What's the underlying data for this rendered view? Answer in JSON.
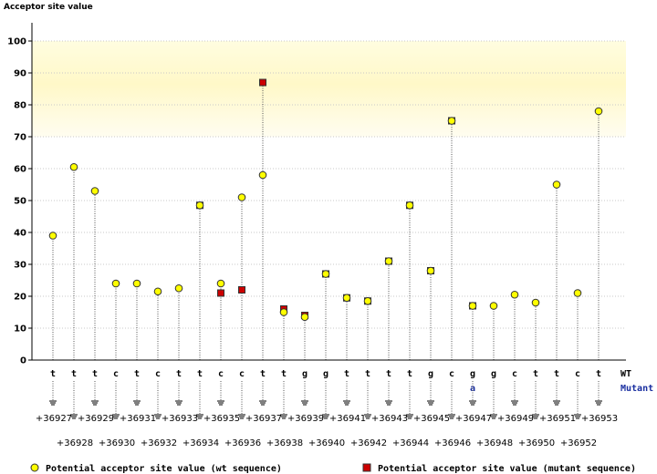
{
  "chart_data": {
    "type": "scatter",
    "ylabel": "Acceptor site value",
    "ylim": [
      0,
      100
    ],
    "yticks": [
      0,
      10,
      20,
      30,
      40,
      50,
      60,
      70,
      80,
      90,
      100
    ],
    "highlight_band": [
      70,
      100
    ],
    "positions": [
      "+36927",
      "+36928",
      "+36929",
      "+36930",
      "+36931",
      "+36932",
      "+36933",
      "+36934",
      "+36935",
      "+36936",
      "+36937",
      "+36938",
      "+36939",
      "+36940",
      "+36941",
      "+36942",
      "+36943",
      "+36944",
      "+36945",
      "+36946",
      "+36947",
      "+36948",
      "+36949",
      "+36950",
      "+36951",
      "+36952",
      "+36953"
    ],
    "wt_bases": [
      "t",
      "t",
      "t",
      "c",
      "t",
      "c",
      "t",
      "t",
      "c",
      "c",
      "t",
      "t",
      "g",
      "g",
      "t",
      "t",
      "t",
      "t",
      "g",
      "c",
      "g",
      "g",
      "c",
      "t",
      "t",
      "c",
      "t"
    ],
    "mutant_bases": [
      "",
      "",
      "",
      "",
      "",
      "",
      "",
      "",
      "",
      "",
      "",
      "",
      "",
      "",
      "",
      "",
      "",
      "",
      "",
      "",
      "a",
      "",
      "",
      "",
      "",
      "",
      ""
    ],
    "wt_row_label": "WT",
    "mutant_row_label": "Mutant",
    "series": [
      {
        "name": "Potential acceptor site value (wt sequence)",
        "color": "#ffff00",
        "marker": "circle",
        "values": [
          39,
          60.5,
          53,
          24,
          24,
          21.5,
          22.5,
          48.5,
          24,
          51,
          58,
          15,
          13.5,
          27,
          19.5,
          18.5,
          31,
          48.5,
          28,
          75,
          17,
          17,
          20.5,
          18,
          55,
          21,
          78
        ]
      },
      {
        "name": "Potential acceptor site value (mutant sequence)",
        "color": "#cc0000",
        "marker": "square",
        "values": [
          null,
          null,
          null,
          null,
          null,
          null,
          null,
          48.5,
          21,
          22,
          87,
          16,
          14,
          27,
          19.5,
          18.5,
          31,
          48.5,
          28,
          75,
          17,
          null,
          null,
          null,
          null,
          null,
          null
        ]
      }
    ],
    "legend_placement": "bottom"
  }
}
